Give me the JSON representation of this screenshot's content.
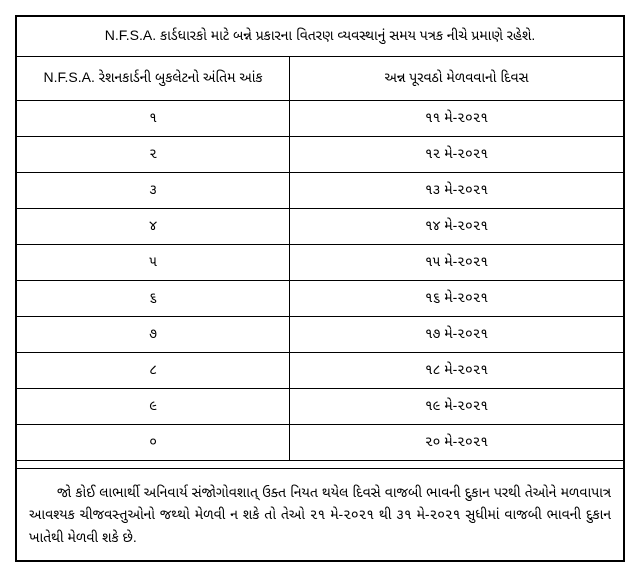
{
  "document": {
    "title": "N.F.S.A. કાર્ડધારકો માટે બન્ને પ્રકારના વિતરણ વ્યવસ્થાનું સમય પત્રક નીચે પ્રમાણે રહેશે.",
    "columns": {
      "left": "N.F.S.A. રેશનકાર્ડની બુકલેટનો અંતિમ આંક",
      "right": "અન્ન પૂરવઠો મેળવવાનો દિવસ"
    },
    "rows": [
      {
        "digit": "૧",
        "date": "૧૧ મે-૨૦૨૧"
      },
      {
        "digit": "૨",
        "date": "૧૨ મે-૨૦૨૧"
      },
      {
        "digit": "૩",
        "date": "૧૩ મે-૨૦૨૧"
      },
      {
        "digit": "૪",
        "date": "૧૪ મે-૨૦૨૧"
      },
      {
        "digit": "૫",
        "date": "૧૫ મે-૨૦૨૧"
      },
      {
        "digit": "૬",
        "date": "૧૬ મે-૨૦૨૧"
      },
      {
        "digit": "૭",
        "date": "૧૭ મે-૨૦૨૧"
      },
      {
        "digit": "૮",
        "date": "૧૮ મે-૨૦૨૧"
      },
      {
        "digit": "૯",
        "date": "૧૯ મે-૨૦૨૧"
      },
      {
        "digit": "૦",
        "date": "૨૦ મે-૨૦૨૧"
      }
    ],
    "footer": "જો કોઈ લાભાર્થી અનિવાર્ય સંજોગોવશાત્ ઉક્ત નિયત થયેલ દિવસે વાજબી ભાવની દુકાન પરથી તેઓને મળવાપાત્ર આવશ્યક ચીજવસ્તુઓનો જથ્થો મેળવી ન શકે તો તેઓ ૨૧ મે-૨૦૨૧ થી ૩૧ મે-૨૦૨૧ સુધીમાં વાજબી ભાવની દુકાન ખાતેથી મેળવી શકે છે.",
    "styling": {
      "border_color": "#000000",
      "background_color": "#ffffff",
      "text_color": "#000000",
      "title_fontsize": 14,
      "header_fontsize": 14,
      "data_fontsize": 14,
      "footer_fontsize": 14,
      "col_left_width_pct": 45,
      "col_right_width_pct": 55
    }
  }
}
